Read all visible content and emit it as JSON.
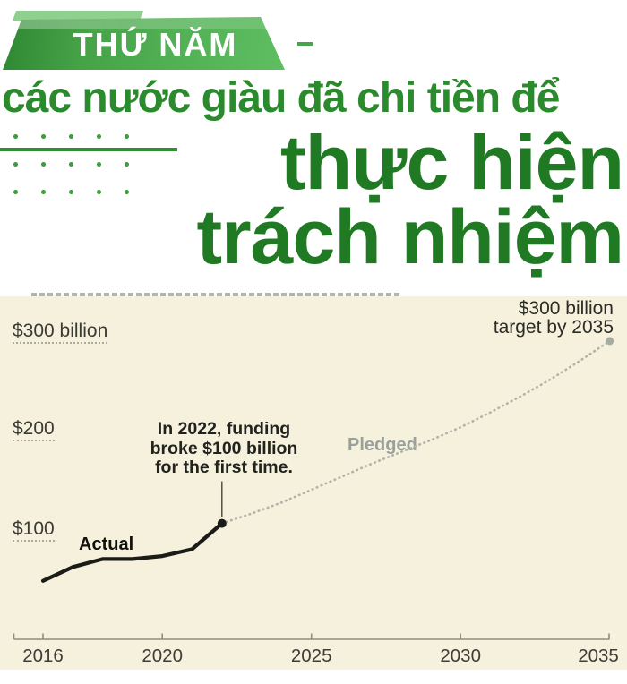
{
  "header": {
    "badge_label": "THỨ NĂM",
    "subtitle": "các nước giàu đã chi tiền để",
    "title_line1": "thực hiện",
    "title_line2": "trách nhiệm"
  },
  "colors": {
    "banner_green_dark": "#2f8633",
    "banner_green_light": "#5fbe61",
    "headline_green": "#1f7a23",
    "subtitle_green": "#2c8a2e",
    "chart_background": "#f5f1dd",
    "actual_line": "#1b1b17",
    "pledged_line": "#afb3a8",
    "pledged_label_gray": "#9aa09a",
    "target_point_gray": "#a7aca0",
    "axis": "#8d8d84"
  },
  "chart": {
    "y_axis_labels": {
      "y300": "$300 billion",
      "y200": "$200",
      "y100": "$100"
    },
    "target_label_line1": "$300 billion",
    "target_label_line2": "target by 2035",
    "annotation_line1": "In 2022, funding",
    "annotation_line2": "broke $100 billion",
    "annotation_line3": "for the first time.",
    "actual_label": "Actual",
    "pledged_label": "Pledged"
  },
  "chart_data": {
    "type": "line",
    "title": "",
    "xlabel": "",
    "ylabel": "",
    "x_ticks": [
      2016,
      2020,
      2025,
      2030,
      2035
    ],
    "y_tick_values": [
      100,
      200,
      300
    ],
    "y_tick_labels": [
      "$100",
      "$200",
      "$300 billion"
    ],
    "xlim": [
      2015,
      2035.6
    ],
    "ylim": [
      0,
      345
    ],
    "grid": "dotted underlines beneath y-axis labels only",
    "legend": "inline series labels (Actual black, Pledged gray)",
    "series": [
      {
        "name": "Actual",
        "type": "solid",
        "x": [
          2016,
          2017,
          2018,
          2019,
          2020,
          2021,
          2022
        ],
        "values": [
          58,
          72,
          80,
          80,
          83,
          90,
          116
        ]
      },
      {
        "name": "Pledged",
        "type": "dotted",
        "x": [
          2022,
          2023,
          2024,
          2025,
          2026,
          2027,
          2028,
          2029,
          2030,
          2031,
          2032,
          2033,
          2034,
          2035
        ],
        "values": [
          116,
          126,
          137,
          150,
          163,
          176,
          188,
          200,
          213,
          228,
          244,
          261,
          280,
          300
        ]
      }
    ],
    "markers": [
      {
        "x": 2022,
        "y": 116,
        "label": "In 2022, funding broke $100 billion for the first time."
      },
      {
        "x": 2035,
        "y": 300,
        "label": "$300 billion target by 2035"
      }
    ]
  }
}
